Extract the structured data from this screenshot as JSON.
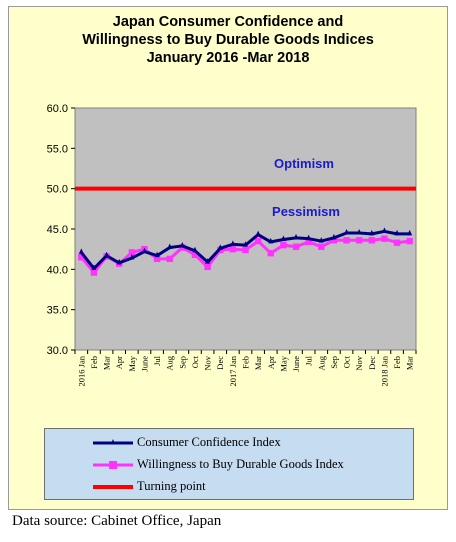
{
  "chart_data": {
    "type": "line",
    "title_lines": [
      "Japan Consumer Confidence and",
      "Willingness to Buy Durable Goods Indices",
      "January 2016 -Mar 2018"
    ],
    "y_ticks": [
      "60.0",
      "55.0",
      "50.0",
      "45.0",
      "40.0",
      "35.0",
      "30.0"
    ],
    "ylim": [
      30,
      60
    ],
    "x_labels": [
      "2016 Jan",
      "Feb",
      "Mar",
      "Apr",
      "May",
      "June",
      "Jul",
      "Aug",
      "Sep",
      "Oct",
      "Nov",
      "Dec",
      "2017 Jan",
      "Feb",
      "Mar",
      "Apr",
      "May",
      "June",
      "Jul",
      "Aug",
      "Sep",
      "Oct",
      "Nov",
      "Dec",
      "2018 Jan",
      "Feb",
      "Mar"
    ],
    "series": [
      {
        "name": "Consumer Confidence Index",
        "color": "#000080",
        "values": [
          42.1,
          40.1,
          41.7,
          40.8,
          41.4,
          42.2,
          41.7,
          42.7,
          42.9,
          42.3,
          40.9,
          42.6,
          43.1,
          43.0,
          44.3,
          43.4,
          43.7,
          43.9,
          43.8,
          43.5,
          43.9,
          44.5,
          44.5,
          44.4,
          44.7,
          44.4,
          44.4
        ]
      },
      {
        "name": "Willingness to Buy Durable Goods Index",
        "color": "#ff33ff",
        "values": [
          41.5,
          39.6,
          41.6,
          40.7,
          42.1,
          42.5,
          41.3,
          41.3,
          42.7,
          41.8,
          40.3,
          42.4,
          42.5,
          42.4,
          43.5,
          42.0,
          43.0,
          42.8,
          43.4,
          42.8,
          43.6,
          43.6,
          43.6,
          43.6,
          43.8,
          43.3,
          43.5
        ]
      },
      {
        "name": "Turning point",
        "color": "#ff0000",
        "values": [
          50,
          50,
          50,
          50,
          50,
          50,
          50,
          50,
          50,
          50,
          50,
          50,
          50,
          50,
          50,
          50,
          50,
          50,
          50,
          50,
          50,
          50,
          50,
          50,
          50,
          50,
          50
        ]
      }
    ],
    "annotations": [
      "Optimism",
      "Pessimism"
    ],
    "grid": false,
    "legend_position": "bottom"
  },
  "source_note": "Data source: Cabinet Office, Japan"
}
